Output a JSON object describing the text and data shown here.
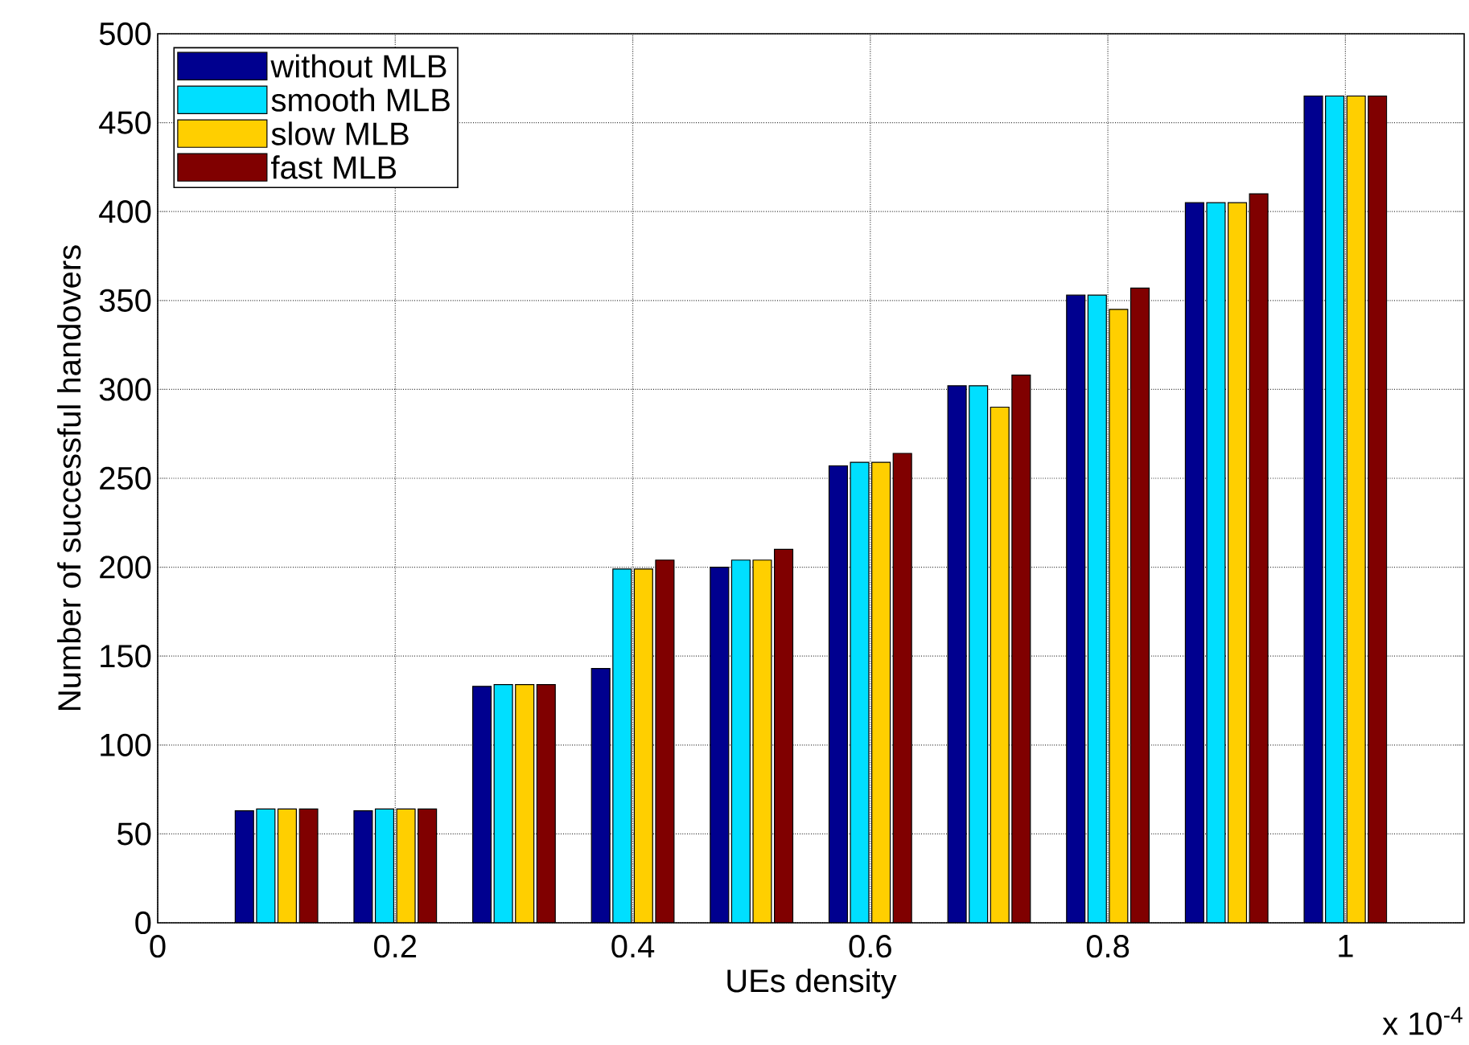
{
  "chart_data": {
    "type": "bar",
    "xlabel": "UEs density",
    "ylabel": "Number of successful handovers",
    "x": [
      0.1,
      0.2,
      0.3,
      0.4,
      0.5,
      0.6,
      0.7,
      0.8,
      0.9,
      1.0
    ],
    "series": [
      {
        "name": "without MLB",
        "color": "#00008f",
        "values": [
          63,
          63,
          133,
          143,
          200,
          257,
          302,
          353,
          405,
          465
        ]
      },
      {
        "name": "smooth MLB",
        "color": "#00dfff",
        "values": [
          64,
          64,
          134,
          199,
          204,
          259,
          302,
          353,
          405,
          465
        ]
      },
      {
        "name": "slow MLB",
        "color": "#ffcf00",
        "values": [
          64,
          64,
          134,
          199,
          204,
          259,
          290,
          345,
          405,
          465
        ]
      },
      {
        "name": "fast MLB",
        "color": "#800000",
        "values": [
          64,
          64,
          134,
          204,
          210,
          264,
          308,
          357,
          410,
          465
        ]
      }
    ],
    "xlim": [
      0,
      1.1
    ],
    "ylim": [
      0,
      500
    ],
    "xticks": [
      0,
      0.2,
      0.4,
      0.6,
      0.8,
      1
    ],
    "yticks": [
      0,
      50,
      100,
      150,
      200,
      250,
      300,
      350,
      400,
      450,
      500
    ],
    "grid": true,
    "legend": "top left",
    "annotations": [
      "x 10$^{-4}$"
    ]
  }
}
